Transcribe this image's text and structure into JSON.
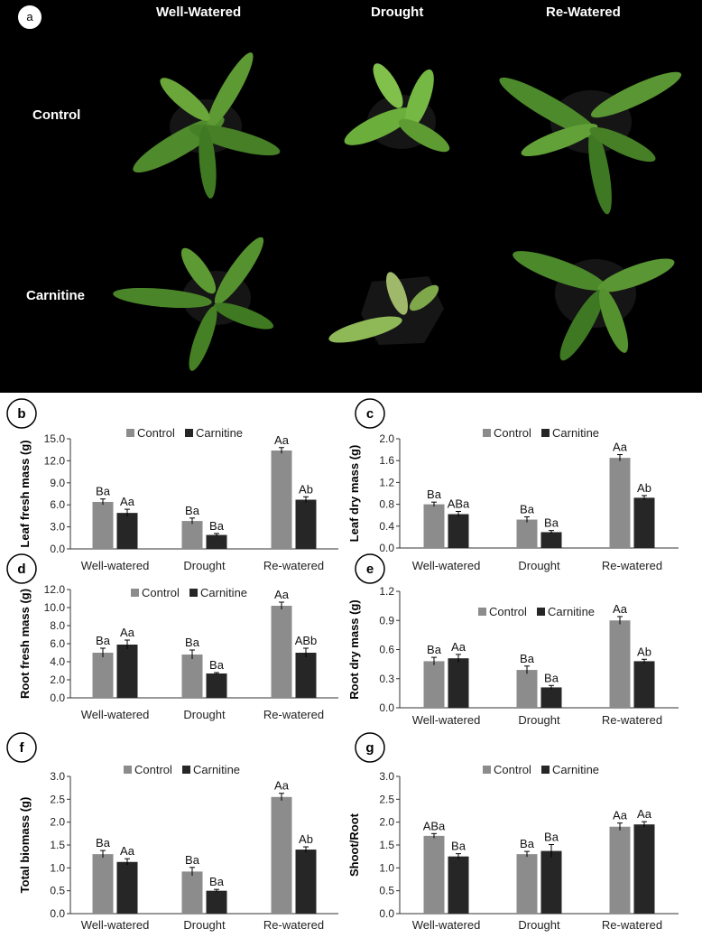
{
  "photo": {
    "letter": "a",
    "columns": [
      "Well-Watered",
      "Drought",
      "Re-Watered"
    ],
    "rows": [
      "Control",
      "Carnitine"
    ]
  },
  "colors": {
    "control": "#8c8c8c",
    "carnitine": "#262626"
  },
  "chart_data": [
    {
      "letter": "b",
      "type": "bar",
      "categories": [
        "Well-watered",
        "Drought",
        "Re-watered"
      ],
      "series": [
        {
          "name": "Control",
          "values": [
            6.4,
            3.8,
            13.4
          ],
          "errors": [
            0.4,
            0.4,
            0.4
          ],
          "labels": [
            "Ba",
            "Ba",
            "Aa"
          ]
        },
        {
          "name": "Carnitine",
          "values": [
            4.9,
            1.9,
            6.7
          ],
          "errors": [
            0.5,
            0.2,
            0.4
          ],
          "labels": [
            "Aa",
            "Ba",
            "Ab"
          ]
        }
      ],
      "ylabel": "Leaf fresh mass (g)",
      "ylim": [
        0,
        15
      ],
      "ticks": [
        "0.0",
        "3.0",
        "6.0",
        "9.0",
        "12.0",
        "15.0"
      ]
    },
    {
      "letter": "c",
      "type": "bar",
      "categories": [
        "Well-watered",
        "Drought",
        "Re-watered"
      ],
      "series": [
        {
          "name": "Control",
          "values": [
            0.8,
            0.52,
            1.65
          ],
          "errors": [
            0.04,
            0.05,
            0.06
          ],
          "labels": [
            "Ba",
            "Ba",
            "Aa"
          ]
        },
        {
          "name": "Carnitine",
          "values": [
            0.62,
            0.29,
            0.92
          ],
          "errors": [
            0.05,
            0.03,
            0.04
          ],
          "labels": [
            "ABa",
            "Ba",
            "Ab"
          ]
        }
      ],
      "ylabel": "Leaf dry mass (g)",
      "ylim": [
        0,
        2
      ],
      "ticks": [
        "0.0",
        "0.4",
        "0.8",
        "1.2",
        "1.6",
        "2.0"
      ]
    },
    {
      "letter": "d",
      "type": "bar",
      "categories": [
        "Well-watered",
        "Drought",
        "Re-watered"
      ],
      "series": [
        {
          "name": "Control",
          "values": [
            5.0,
            4.8,
            10.2
          ],
          "errors": [
            0.5,
            0.5,
            0.4
          ],
          "labels": [
            "Ba",
            "Ba",
            "Aa"
          ]
        },
        {
          "name": "Carnitine",
          "values": [
            5.9,
            2.7,
            5.0
          ],
          "errors": [
            0.5,
            0.1,
            0.5
          ],
          "labels": [
            "Aa",
            "Ba",
            "ABb"
          ]
        }
      ],
      "ylabel": "Root fresh mass (g)",
      "ylim": [
        0,
        12
      ],
      "ticks": [
        "0.0",
        "2.0",
        "4.0",
        "6.0",
        "8.0",
        "10.0",
        "12.0"
      ]
    },
    {
      "letter": "e",
      "type": "bar",
      "categories": [
        "Well-watered",
        "Drought",
        "Re-watered"
      ],
      "series": [
        {
          "name": "Control",
          "values": [
            0.48,
            0.39,
            0.9
          ],
          "errors": [
            0.04,
            0.04,
            0.04
          ],
          "labels": [
            "Ba",
            "Ba",
            "Aa"
          ]
        },
        {
          "name": "Carnitine",
          "values": [
            0.51,
            0.21,
            0.48
          ],
          "errors": [
            0.04,
            0.02,
            0.02
          ],
          "labels": [
            "Aa",
            "Ba",
            "Ab"
          ]
        }
      ],
      "ylabel": "Root dry mass (g)",
      "ylim": [
        0,
        1.2
      ],
      "ticks": [
        "0.0",
        "0.3",
        "0.6",
        "0.9",
        "1.2"
      ]
    },
    {
      "letter": "f",
      "type": "bar",
      "categories": [
        "Well-watered",
        "Drought",
        "Re-watered"
      ],
      "series": [
        {
          "name": "Control",
          "values": [
            1.3,
            0.92,
            2.55
          ],
          "errors": [
            0.08,
            0.09,
            0.08
          ],
          "labels": [
            "Ba",
            "Ba",
            "Aa"
          ]
        },
        {
          "name": "Carnitine",
          "values": [
            1.13,
            0.5,
            1.4
          ],
          "errors": [
            0.07,
            0.03,
            0.06
          ],
          "labels": [
            "Aa",
            "Ba",
            "Ab"
          ]
        }
      ],
      "ylabel": "Total biomass (g)",
      "ylim": [
        0,
        3
      ],
      "ticks": [
        "0.0",
        "0.5",
        "1.0",
        "1.5",
        "2.0",
        "2.5",
        "3.0"
      ]
    },
    {
      "letter": "g",
      "type": "bar",
      "categories": [
        "Well-watered",
        "Drought",
        "Re-watered"
      ],
      "series": [
        {
          "name": "Control",
          "values": [
            1.7,
            1.3,
            1.9
          ],
          "errors": [
            0.05,
            0.06,
            0.08
          ],
          "labels": [
            "ABa",
            "Ba",
            "Aa"
          ]
        },
        {
          "name": "Carnitine",
          "values": [
            1.25,
            1.37,
            1.95
          ],
          "errors": [
            0.06,
            0.14,
            0.06
          ],
          "labels": [
            "Ba",
            "Ba",
            "Aa"
          ]
        }
      ],
      "ylabel": "Shoot/Root",
      "ylim": [
        0,
        3
      ],
      "ticks": [
        "0.0",
        "0.5",
        "1.0",
        "1.5",
        "2.0",
        "2.5",
        "3.0"
      ]
    }
  ]
}
